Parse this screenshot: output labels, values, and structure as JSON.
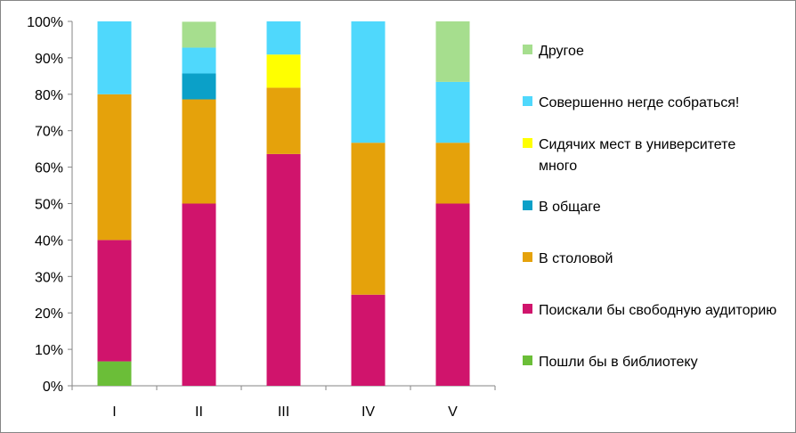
{
  "chart_data": {
    "type": "bar",
    "stacked": true,
    "percent": true,
    "categories": [
      "I",
      "II",
      "III",
      "IV",
      "V"
    ],
    "ylim": [
      0,
      100
    ],
    "yticks": [
      "0%",
      "10%",
      "20%",
      "30%",
      "40%",
      "50%",
      "60%",
      "70%",
      "80%",
      "90%",
      "100%"
    ],
    "grid": false,
    "legend_position": "right",
    "series": [
      {
        "name": "Пошли бы в библиотеку",
        "color": "#6BBE38",
        "values": [
          6.7,
          0,
          0,
          0,
          0
        ]
      },
      {
        "name": "Поискали бы свободную аудиторию",
        "color": "#D0146C",
        "values": [
          33.3,
          50,
          63.6,
          25,
          50
        ]
      },
      {
        "name": "В столовой",
        "color": "#E5A20B",
        "values": [
          40,
          28.6,
          18.2,
          41.7,
          16.7
        ]
      },
      {
        "name": "В общаге",
        "color": "#0BA0C8",
        "values": [
          0,
          7.1,
          0,
          0,
          0
        ]
      },
      {
        "name": "Сидячих мест в университете много",
        "color": "#FFFF00",
        "values": [
          0,
          0,
          9.1,
          0,
          0
        ]
      },
      {
        "name": "Совершенно негде собраться!",
        "color": "#4FD8FC",
        "values": [
          20,
          7.1,
          9.1,
          33.3,
          16.7
        ]
      },
      {
        "name": "Другое",
        "color": "#A6DE8E",
        "values": [
          0,
          7.1,
          0,
          0,
          16.6
        ]
      }
    ]
  }
}
